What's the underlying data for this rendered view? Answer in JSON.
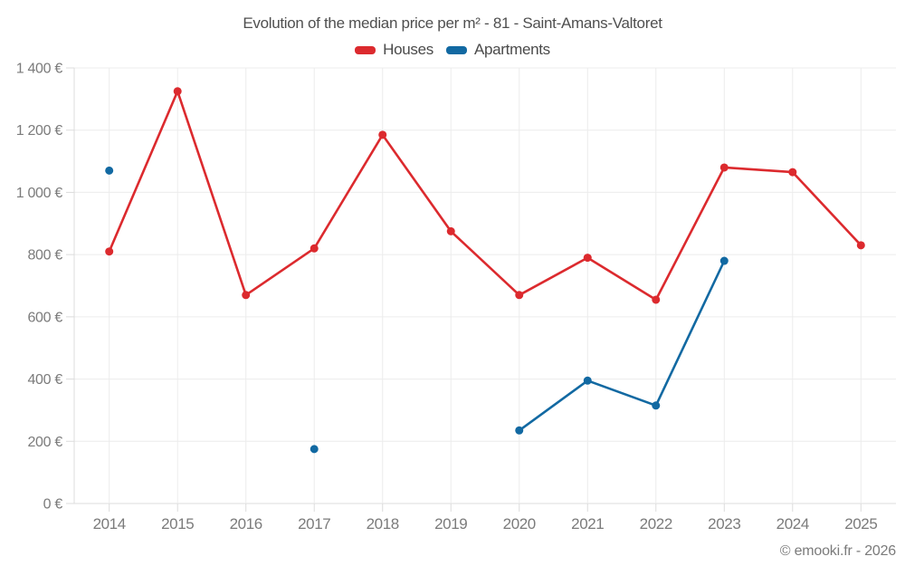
{
  "chart_data": {
    "type": "line",
    "title": "Evolution of the median price per m² - 81 - Saint-Amans-Valtoret",
    "x": [
      "2014",
      "2015",
      "2016",
      "2017",
      "2018",
      "2019",
      "2020",
      "2021",
      "2022",
      "2023",
      "2024",
      "2025"
    ],
    "series": [
      {
        "name": "Houses",
        "color": "#dc2a2e",
        "values": [
          810,
          1325,
          670,
          820,
          1185,
          875,
          670,
          790,
          655,
          1080,
          1065,
          830
        ]
      },
      {
        "name": "Apartments",
        "color": "#1269a2",
        "values": [
          1070,
          null,
          null,
          175,
          null,
          null,
          235,
          395,
          315,
          780,
          null,
          null
        ]
      }
    ],
    "xlabel": "",
    "ylabel": "",
    "ylim": [
      0,
      1400
    ],
    "y_tick_step": 200,
    "y_tick_labels": [
      "0 €",
      "200 €",
      "400 €",
      "600 €",
      "800 €",
      "1 000 €",
      "1 200 €",
      "1 400 €"
    ],
    "grid": true,
    "legend_position": "top",
    "currency_suffix": "€"
  },
  "footer": {
    "text": "© emooki.fr - 2026"
  },
  "colors": {
    "background": "#ffffff",
    "grid": "#ececec",
    "axis": "#dcdcdc",
    "tick_label": "#7b7b7b",
    "title_text": "#4f4f4f",
    "legend_text": "#4a4a4a",
    "footer_text": "#7b7b7b"
  }
}
